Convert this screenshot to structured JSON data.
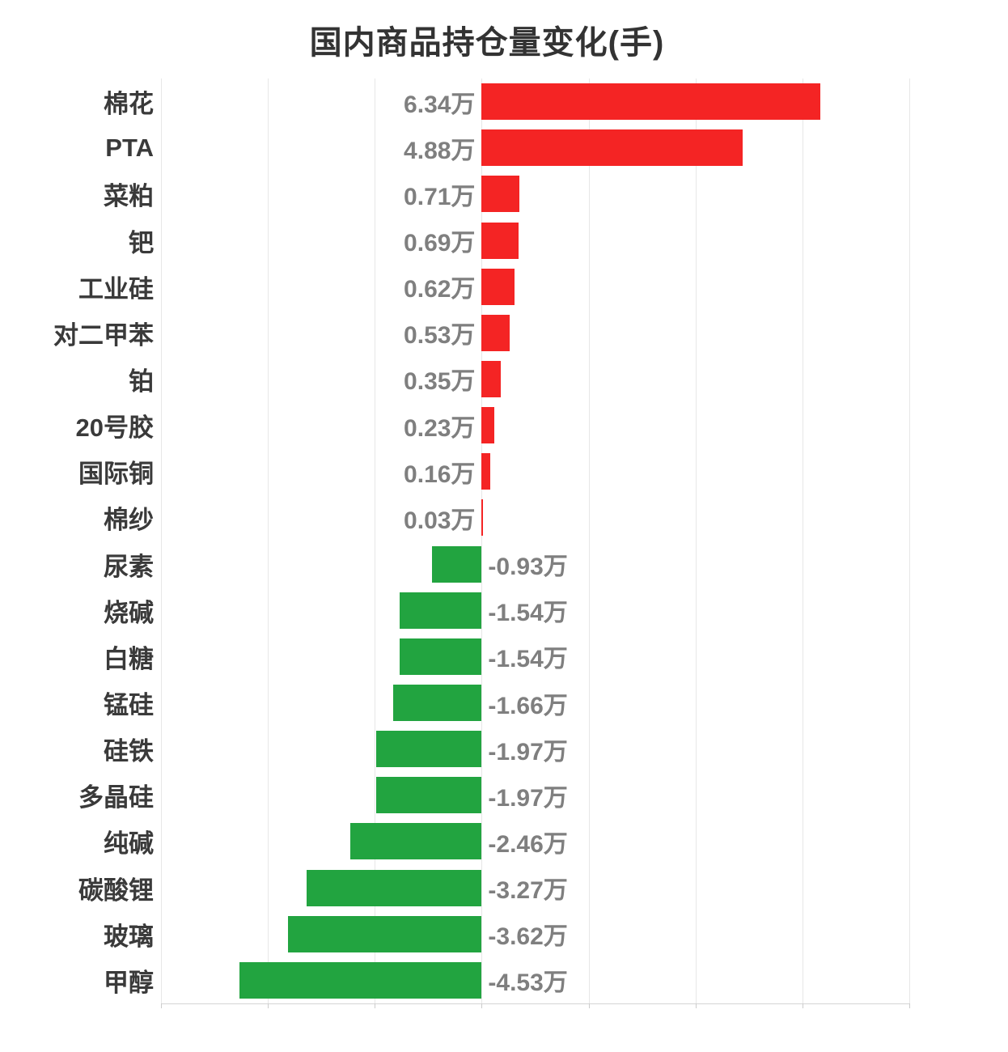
{
  "title": "国内商品持仓量变化(手)",
  "colors": {
    "positive_bar": "#f42424",
    "negative_bar": "#22a440",
    "title_text": "#333333",
    "category_text": "#3a3a3a",
    "value_text": "#7f7f7f",
    "gridline": "#e7e7e7",
    "axis_line": "#d4d4d4",
    "background": "#ffffff"
  },
  "chart_data": {
    "type": "bar",
    "orientation": "horizontal",
    "title": "国内商品持仓量变化(手)",
    "unit": "万",
    "xlim": [
      -6,
      8
    ],
    "grid_interval": 2,
    "grid": true,
    "legend": "none",
    "categories": [
      "棉花",
      "PTA",
      "菜粕",
      "钯",
      "工业硅",
      "对二甲苯",
      "铂",
      "20号胶",
      "国际铜",
      "棉纱",
      "尿素",
      "烧碱",
      "白糖",
      "锰硅",
      "硅铁",
      "多晶硅",
      "纯碱",
      "碳酸锂",
      "玻璃",
      "甲醇"
    ],
    "values": [
      6.34,
      4.88,
      0.71,
      0.69,
      0.62,
      0.53,
      0.35,
      0.23,
      0.16,
      0.03,
      -0.93,
      -1.54,
      -1.54,
      -1.66,
      -1.97,
      -1.97,
      -2.46,
      -3.27,
      -3.62,
      -4.53
    ],
    "value_labels": [
      "6.34万",
      "4.88万",
      "0.71万",
      "0.69万",
      "0.62万",
      "0.53万",
      "0.35万",
      "0.23万",
      "0.16万",
      "0.03万",
      "-0.93万",
      "-1.54万",
      "-1.54万",
      "-1.66万",
      "-1.97万",
      "-1.97万",
      "-2.46万",
      "-3.27万",
      "-3.62万",
      "-4.53万"
    ]
  }
}
